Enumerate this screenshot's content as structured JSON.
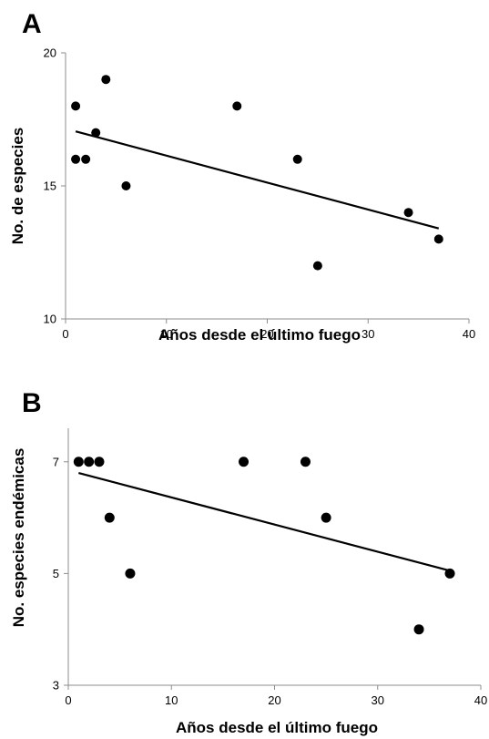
{
  "chart_data": [
    {
      "type": "scatter",
      "panel": "A",
      "xlabel": "Años desde el último fuego",
      "ylabel": "No. de especies",
      "xlim": [
        0,
        40
      ],
      "ylim": [
        10,
        20
      ],
      "xticks": [
        0,
        10,
        20,
        30,
        40
      ],
      "yticks": [
        10,
        15,
        20
      ],
      "grid": false,
      "points": [
        {
          "x": 1,
          "y": 18
        },
        {
          "x": 1,
          "y": 16
        },
        {
          "x": 2,
          "y": 16
        },
        {
          "x": 3,
          "y": 17
        },
        {
          "x": 4,
          "y": 19
        },
        {
          "x": 6,
          "y": 15
        },
        {
          "x": 17,
          "y": 18
        },
        {
          "x": 23,
          "y": 16
        },
        {
          "x": 25,
          "y": 12
        },
        {
          "x": 34,
          "y": 14
        },
        {
          "x": 37,
          "y": 13
        }
      ],
      "trendline": {
        "x1": 1,
        "y1": 17.05,
        "x2": 37,
        "y2": 13.4
      }
    },
    {
      "type": "scatter",
      "panel": "B",
      "xlabel": "Años desde el último fuego",
      "ylabel": "No. especies endémicas",
      "xlim": [
        0,
        40
      ],
      "ylim": [
        3,
        7.6
      ],
      "xticks": [
        0,
        10,
        20,
        30,
        40
      ],
      "yticks": [
        3,
        5,
        7
      ],
      "grid": false,
      "points": [
        {
          "x": 1,
          "y": 7
        },
        {
          "x": 2,
          "y": 7
        },
        {
          "x": 3,
          "y": 7
        },
        {
          "x": 4,
          "y": 6
        },
        {
          "x": 6,
          "y": 5
        },
        {
          "x": 17,
          "y": 7
        },
        {
          "x": 23,
          "y": 7
        },
        {
          "x": 25,
          "y": 6
        },
        {
          "x": 34,
          "y": 4
        },
        {
          "x": 37,
          "y": 5
        }
      ],
      "trendline": {
        "x1": 1,
        "y1": 6.8,
        "x2": 37,
        "y2": 5.05
      }
    }
  ]
}
